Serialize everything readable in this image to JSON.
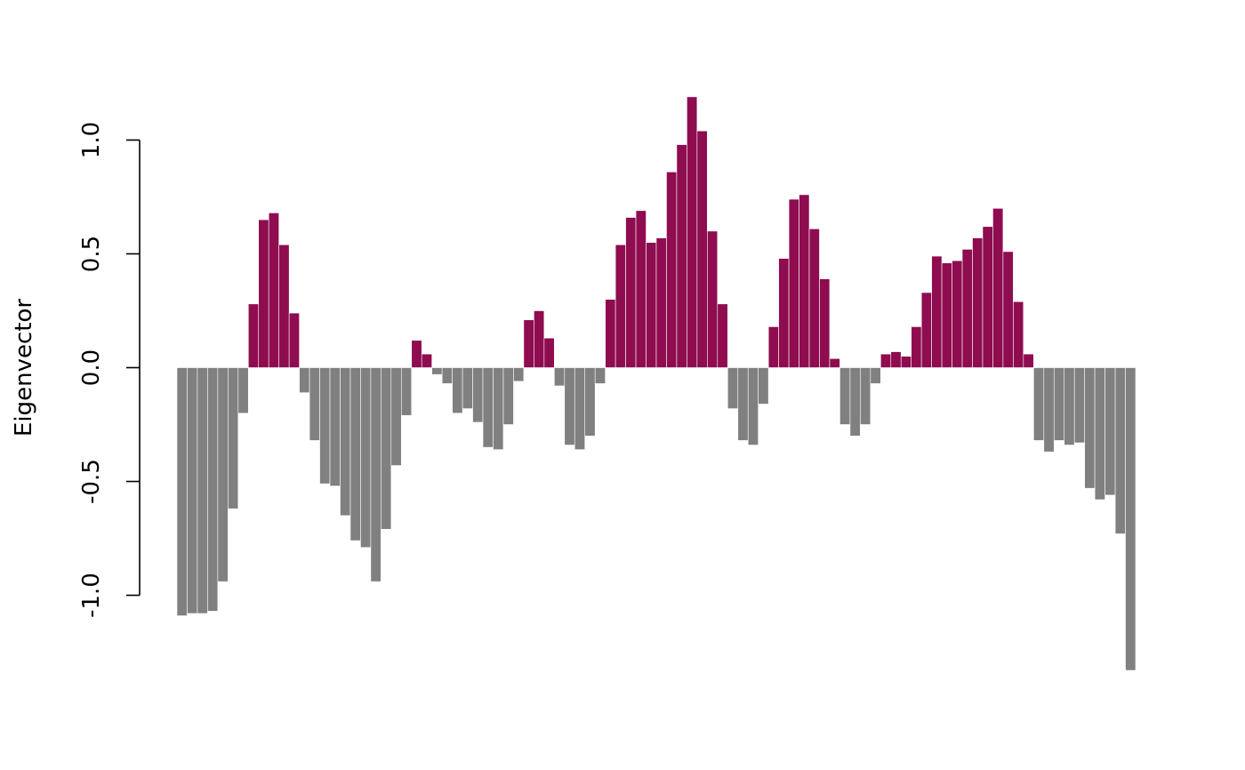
{
  "chart_data": {
    "type": "bar",
    "ylabel": "Eigenvector",
    "yticks": [
      -1.0,
      -0.5,
      0.0,
      0.5,
      1.0
    ],
    "ytick_labels": [
      "-1.0",
      "-0.5",
      "0.0",
      "0.5",
      "1.0"
    ],
    "ylim": [
      -1.45,
      1.33
    ],
    "colors": {
      "positive": "#8E0C4F",
      "negative": "#808080"
    },
    "values": [
      -1.09,
      -1.08,
      -1.08,
      -1.07,
      -0.94,
      -0.62,
      -0.2,
      0.28,
      0.65,
      0.68,
      0.54,
      0.24,
      -0.11,
      -0.32,
      -0.51,
      -0.52,
      -0.65,
      -0.76,
      -0.79,
      -0.94,
      -0.71,
      -0.43,
      -0.21,
      0.12,
      0.06,
      -0.03,
      -0.07,
      -0.2,
      -0.18,
      -0.24,
      -0.35,
      -0.36,
      -0.25,
      -0.06,
      0.21,
      0.25,
      0.13,
      -0.08,
      -0.34,
      -0.36,
      -0.3,
      -0.07,
      0.3,
      0.54,
      0.66,
      0.69,
      0.55,
      0.57,
      0.86,
      0.98,
      1.19,
      1.04,
      0.6,
      0.28,
      -0.18,
      -0.32,
      -0.34,
      -0.16,
      0.18,
      0.48,
      0.74,
      0.76,
      0.61,
      0.39,
      0.04,
      -0.25,
      -0.3,
      -0.25,
      -0.07,
      0.06,
      0.07,
      0.05,
      0.18,
      0.33,
      0.49,
      0.46,
      0.47,
      0.52,
      0.57,
      0.62,
      0.7,
      0.51,
      0.29,
      0.06,
      -0.32,
      -0.37,
      -0.32,
      -0.34,
      -0.33,
      -0.53,
      -0.58,
      -0.56,
      -0.73,
      -1.33
    ]
  }
}
